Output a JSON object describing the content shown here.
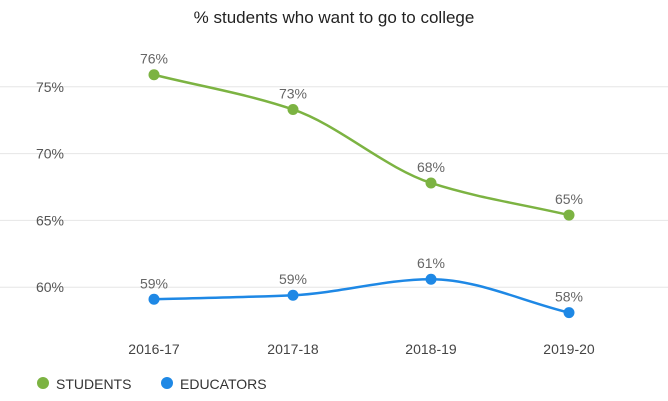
{
  "chart_data": {
    "type": "line",
    "title": "% students who want to go to college",
    "xlabel": "",
    "ylabel": "",
    "categories": [
      "2016-17",
      "2017-18",
      "2018-19",
      "2019-20"
    ],
    "ylim": [
      56.5,
      78.5
    ],
    "y_ticks": [
      60,
      65,
      70,
      75
    ],
    "y_tick_labels": [
      "60%",
      "65%",
      "70%",
      "75%"
    ],
    "grid": "horizontal",
    "legend_position": "bottom-left",
    "series": [
      {
        "name": "STUDENTS",
        "color": "#7cb342",
        "values": [
          75.9,
          73.3,
          67.8,
          65.4
        ],
        "data_labels": [
          "76%",
          "73%",
          "68%",
          "65%"
        ]
      },
      {
        "name": "EDUCATORS",
        "color": "#1e88e5",
        "values": [
          59.1,
          59.4,
          60.6,
          58.1
        ],
        "data_labels": [
          "59%",
          "59%",
          "61%",
          "58%"
        ]
      }
    ]
  }
}
